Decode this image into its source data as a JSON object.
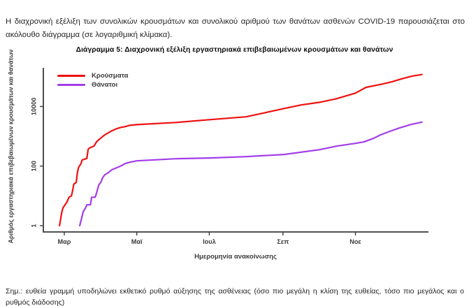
{
  "document": {
    "intro": "Η διαχρονική εξέλιξη των συνολικών κρουσμάτων και συνολικού αριθμού των θανάτων ασθενών COVID-19 παρουσιάζεται στο ακόλουθο διάγραμμα (σε λογαριθμική κλίμακα).",
    "note": "Σημ.: ευθεία γραμμή υποδηλώνει εκθετικό ρυθμό αύξησης της ασθένειας (όσο πιο μεγάλη η κλίση της ευθείας, τόσο πιο μεγάλος και ο ρυθμός διάδοσης)"
  },
  "chart_data": {
    "type": "line",
    "title": "Διάγραμμα 5: Διαχρονική εξέλιξη εργαστηριακά επιβεβαιωμένων κρουσμάτων και θανάτων",
    "xlabel": "Ημερομηνία ανακοίνωσης",
    "ylabel": "Αριθμός εργαστηριακά επιβεβαιωμένων κρουσμάτων και θανάτων",
    "y_scale": "log10",
    "ylim": [
      1,
      200000
    ],
    "y_ticks": [
      1,
      100,
      10000
    ],
    "x_ticks": [
      {
        "label": "Μαρ",
        "date": "2020-03-01"
      },
      {
        "label": "Μαϊ",
        "date": "2020-05-01"
      },
      {
        "label": "Ιουλ",
        "date": "2020-07-01"
      },
      {
        "label": "Σεπ",
        "date": "2020-09-01"
      },
      {
        "label": "Νοε",
        "date": "2020-11-01"
      }
    ],
    "grid": false,
    "legend_position": "top-left",
    "axis_color": "#3a3a3a",
    "series": [
      {
        "name": "Κρούσματα",
        "color": "#ee1111",
        "points": [
          [
            "2020-02-26",
            1
          ],
          [
            "2020-02-28",
            3
          ],
          [
            "2020-02-29",
            4
          ],
          [
            "2020-03-03",
            6
          ],
          [
            "2020-03-05",
            9
          ],
          [
            "2020-03-07",
            10
          ],
          [
            "2020-03-08",
            15
          ],
          [
            "2020-03-09",
            25
          ],
          [
            "2020-03-11",
            28
          ],
          [
            "2020-03-12",
            60
          ],
          [
            "2020-03-13",
            90
          ],
          [
            "2020-03-15",
            120
          ],
          [
            "2020-03-16",
            160
          ],
          [
            "2020-03-20",
            180
          ],
          [
            "2020-03-21",
            355
          ],
          [
            "2020-03-22",
            400
          ],
          [
            "2020-03-26",
            470
          ],
          [
            "2020-03-28",
            640
          ],
          [
            "2020-03-30",
            760
          ],
          [
            "2020-04-01",
            890
          ],
          [
            "2020-04-04",
            1110
          ],
          [
            "2020-04-07",
            1300
          ],
          [
            "2020-04-10",
            1530
          ],
          [
            "2020-04-14",
            1800
          ],
          [
            "2020-04-18",
            2000
          ],
          [
            "2020-04-21",
            2100
          ],
          [
            "2020-04-25",
            2330
          ],
          [
            "2020-05-01",
            2460
          ],
          [
            "2020-06-03",
            2900
          ],
          [
            "2020-07-02",
            3620
          ],
          [
            "2020-08-01",
            4500
          ],
          [
            "2020-08-17",
            6200
          ],
          [
            "2020-09-02",
            8560
          ],
          [
            "2020-09-16",
            11200
          ],
          [
            "2020-10-02",
            13800
          ],
          [
            "2020-10-16",
            18200
          ],
          [
            "2020-11-01",
            28000
          ],
          [
            "2020-11-10",
            44000
          ],
          [
            "2020-11-24",
            57000
          ],
          [
            "2020-12-02",
            68000
          ],
          [
            "2020-12-10",
            85000
          ],
          [
            "2020-12-19",
            105000
          ],
          [
            "2020-12-27",
            118000
          ]
        ]
      },
      {
        "name": "Θάνατοι",
        "color": "#a33dea",
        "points": [
          [
            "2020-03-14",
            1
          ],
          [
            "2020-03-17",
            3
          ],
          [
            "2020-03-19",
            4
          ],
          [
            "2020-03-20",
            5
          ],
          [
            "2020-03-23",
            5
          ],
          [
            "2020-03-24",
            9
          ],
          [
            "2020-03-27",
            9
          ],
          [
            "2020-03-28",
            12
          ],
          [
            "2020-03-30",
            23
          ],
          [
            "2020-04-01",
            30
          ],
          [
            "2020-04-02",
            39
          ],
          [
            "2020-04-04",
            51
          ],
          [
            "2020-04-07",
            60
          ],
          [
            "2020-04-10",
            75
          ],
          [
            "2020-04-14",
            88
          ],
          [
            "2020-04-18",
            103
          ],
          [
            "2020-04-21",
            121
          ],
          [
            "2020-04-25",
            134
          ],
          [
            "2020-05-01",
            150
          ],
          [
            "2020-06-03",
            176
          ],
          [
            "2020-07-02",
            187
          ],
          [
            "2020-08-01",
            207
          ],
          [
            "2020-09-02",
            245
          ],
          [
            "2020-10-02",
            355
          ],
          [
            "2020-10-16",
            465
          ],
          [
            "2020-11-01",
            577
          ],
          [
            "2020-11-08",
            645
          ],
          [
            "2020-11-16",
            845
          ],
          [
            "2020-11-22",
            1110
          ],
          [
            "2020-11-30",
            1460
          ],
          [
            "2020-12-08",
            1900
          ],
          [
            "2020-12-18",
            2500
          ],
          [
            "2020-12-27",
            2980
          ]
        ]
      }
    ]
  }
}
